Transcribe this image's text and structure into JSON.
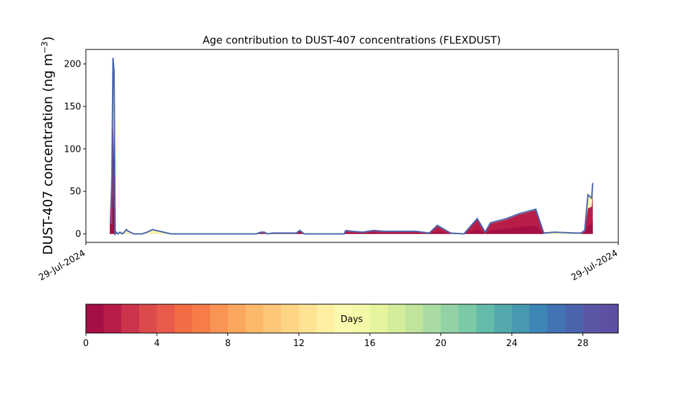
{
  "chart_data": {
    "type": "area",
    "title": "Age contribution to DUST-407 concentrations (FLEXDUST)",
    "ylabel_main": "DUST-407 concentration (ng m",
    "ylabel_sup": "−3",
    "ylabel_close": ")",
    "xlabel": "",
    "xlim": [
      0,
      100
    ],
    "ylim": [
      -10,
      217
    ],
    "x_tick_labels": [
      "29-Jul-2024",
      "29-Jul-2024"
    ],
    "y_ticks": [
      0,
      50,
      100,
      150,
      200
    ],
    "grid": false,
    "total_line": {
      "x": [
        4.5,
        4.8,
        5.1,
        5.3,
        5.5,
        5.7,
        6.0,
        6.4,
        6.8,
        7.2,
        7.6,
        8.0,
        9.0,
        10.5,
        11.5,
        12.5,
        16.0,
        32.0,
        32.8,
        33.5,
        34.2,
        35.0,
        39.5,
        40.2,
        41.0,
        48.5,
        48.8,
        50.0,
        52.0,
        54.0,
        56.0,
        60.0,
        62.0,
        64.5,
        66.0,
        68.5,
        71.0,
        73.5,
        75.0,
        76.0,
        79.0,
        81.5,
        84.5,
        86.0,
        88.0,
        92.0,
        93.0,
        93.7,
        94.3,
        95.0,
        95.2
      ],
      "y": [
        14,
        13,
        207,
        190,
        0,
        2,
        0,
        2,
        0,
        2,
        5,
        3,
        0,
        0,
        2,
        5,
        0,
        0,
        2,
        2,
        0,
        1,
        1,
        4,
        0,
        0,
        4,
        3,
        2,
        4,
        3,
        3,
        3,
        1,
        10,
        1,
        0,
        18,
        2,
        13,
        18,
        24,
        29,
        1,
        2,
        1,
        1,
        4,
        46,
        42,
        60
      ]
    },
    "series": [
      {
        "values": [
          {
            "x": 4.5,
            "y": 14
          },
          {
            "x": 5.1,
            "y": 131
          },
          {
            "x": 5.4,
            "y": 60
          },
          {
            "x": 5.5,
            "y": 0
          },
          {
            "x": 31.5,
            "y": 0
          },
          {
            "x": 32.8,
            "y": 2
          },
          {
            "x": 34.2,
            "y": 0
          },
          {
            "x": 35.0,
            "y": 1
          },
          {
            "x": 39.5,
            "y": 1
          },
          {
            "x": 40.2,
            "y": 4
          },
          {
            "x": 41.0,
            "y": 0
          },
          {
            "x": 48.5,
            "y": 0
          },
          {
            "x": 48.8,
            "y": 4
          },
          {
            "x": 50.0,
            "y": 3
          },
          {
            "x": 52.0,
            "y": 2
          },
          {
            "x": 54.0,
            "y": 4
          },
          {
            "x": 56.0,
            "y": 3
          },
          {
            "x": 60.0,
            "y": 3
          },
          {
            "x": 62.0,
            "y": 3
          },
          {
            "x": 64.5,
            "y": 1
          },
          {
            "x": 66.0,
            "y": 9
          },
          {
            "x": 68.5,
            "y": 1
          },
          {
            "x": 71.0,
            "y": 0
          },
          {
            "x": 73.5,
            "y": 17
          },
          {
            "x": 75.0,
            "y": 2
          },
          {
            "x": 76.0,
            "y": 12
          },
          {
            "x": 79.0,
            "y": 17
          },
          {
            "x": 81.5,
            "y": 23
          },
          {
            "x": 84.5,
            "y": 28
          },
          {
            "x": 86.0,
            "y": 0
          },
          {
            "x": 93.0,
            "y": 0
          },
          {
            "x": 93.7,
            "y": 3
          },
          {
            "x": 94.3,
            "y": 30
          },
          {
            "x": 95.0,
            "y": 32
          },
          {
            "x": 95.2,
            "y": 45
          },
          {
            "x": 95.2,
            "y": 0
          }
        ]
      }
    ],
    "colorbar": {
      "label": "Days",
      "min": 0,
      "max": 30,
      "ticks": [
        0,
        4,
        8,
        12,
        16,
        20,
        24,
        28
      ],
      "colors": [
        "#a50f45",
        "#b81d48",
        "#cc334c",
        "#dd4a4c",
        "#e85a4b",
        "#f26c44",
        "#f67d4a",
        "#f99455",
        "#fca75f",
        "#fdb96a",
        "#fec678",
        "#fed585",
        "#fee395",
        "#feefa3",
        "#fbf8b0",
        "#f3f9a8",
        "#e6f49d",
        "#d4ed9b",
        "#c0e49c",
        "#a9dba2",
        "#92d2a4",
        "#7acaa5",
        "#65bba9",
        "#54a9ad",
        "#4798b1",
        "#3e85b8",
        "#4273b3",
        "#4a65ac",
        "#5a58a6",
        "#5e4fa2"
      ]
    }
  }
}
